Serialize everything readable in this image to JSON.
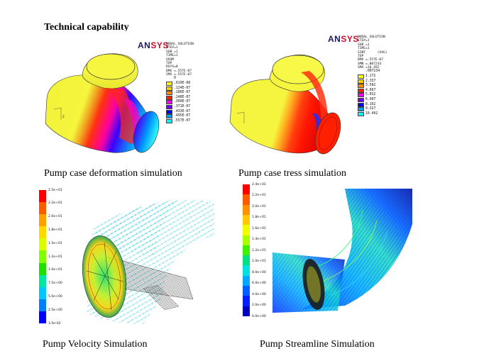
{
  "heading": "Technical capability",
  "captions": {
    "deformation": "Pump case deformation simulation",
    "stress": "Pump case tress simulation",
    "velocity": "Pump Velocity Simulation",
    "streamline": "Pump Streamline Simulation"
  },
  "ansys_logo": {
    "part1": "AN",
    "part2": "SYS"
  },
  "deformation_panel": {
    "info_lines": [
      "NODAL SOLUTION",
      "STEP=1",
      "SUB =1",
      "TIME=1",
      "USUM",
      "TOP",
      "RSYS=0",
      "DMX =.557E-07",
      "SMX =.557E-07"
    ],
    "legend_zero": "0",
    "legend": [
      {
        "label": ".619E-08",
        "color": "#ffff00"
      },
      {
        "label": ".124E-07",
        "color": "#ffd000"
      },
      {
        "label": ".186E-07",
        "color": "#ff8c00"
      },
      {
        "label": ".248E-07",
        "color": "#ff2000"
      },
      {
        "label": ".309E-07",
        "color": "#ff00ff"
      },
      {
        "label": ".371E-07",
        "color": "#7000ff"
      },
      {
        "label": ".433E-07",
        "color": "#0000ff"
      },
      {
        "label": ".495E-07",
        "color": "#00a0ff"
      },
      {
        "label": ".557E-07",
        "color": "#00ffff"
      }
    ]
  },
  "stress_panel": {
    "info_lines": [
      "NODAL SOLUTION",
      "STEP=1",
      "SUB =1",
      "TIME=1",
      "SINT      (AVG)",
      "TOP",
      "DMX =.557E-07",
      "SMN =.007234",
      "SMX =10.492"
    ],
    "legend_zero": ".007234",
    "legend": [
      {
        "label": "1.172",
        "color": "#ffff00"
      },
      {
        "label": "2.337",
        "color": "#ffd000"
      },
      {
        "label": "3.502",
        "color": "#ff8c00"
      },
      {
        "label": "4.667",
        "color": "#ff2000"
      },
      {
        "label": "5.832",
        "color": "#ff00ff"
      },
      {
        "label": "6.997",
        "color": "#7000ff"
      },
      {
        "label": "8.162",
        "color": "#0000ff"
      },
      {
        "label": "9.327",
        "color": "#00a0ff"
      },
      {
        "label": "10.492",
        "color": "#00ffff"
      }
    ]
  },
  "velocity_panel": {
    "legend_ticks": [
      "2.5e+01",
      "2.2e+01",
      "2.0e+01",
      "1.8e+01",
      "1.5e+01",
      "1.2e+01",
      "1.0e+01",
      "7.5e+00",
      "5.0e+00",
      "2.5e+00",
      "3.5e-02"
    ],
    "legend_colors": [
      "#ff0000",
      "#ff5a00",
      "#ffa000",
      "#ffd800",
      "#d8ff00",
      "#80ff00",
      "#20e000",
      "#00e8a0",
      "#00c8ff",
      "#0080ff",
      "#0000ff"
    ]
  },
  "streamline_panel": {
    "legend_ticks": [
      "2.4e+01",
      "2.2e+01",
      "2.0e+01",
      "1.8e+01",
      "1.6e+01",
      "1.4e+01",
      "1.2e+01",
      "1.0e+01",
      "8.0e+00",
      "6.0e+00",
      "4.0e+00",
      "2.0e+00",
      "0.0e+00"
    ],
    "legend_colors": [
      "#ff0000",
      "#ff5a00",
      "#ff9000",
      "#ffc800",
      "#f0ff00",
      "#a8ff00",
      "#40f000",
      "#00e080",
      "#00e0e0",
      "#00a8ff",
      "#0060ff",
      "#0020ff",
      "#0000c0"
    ]
  }
}
